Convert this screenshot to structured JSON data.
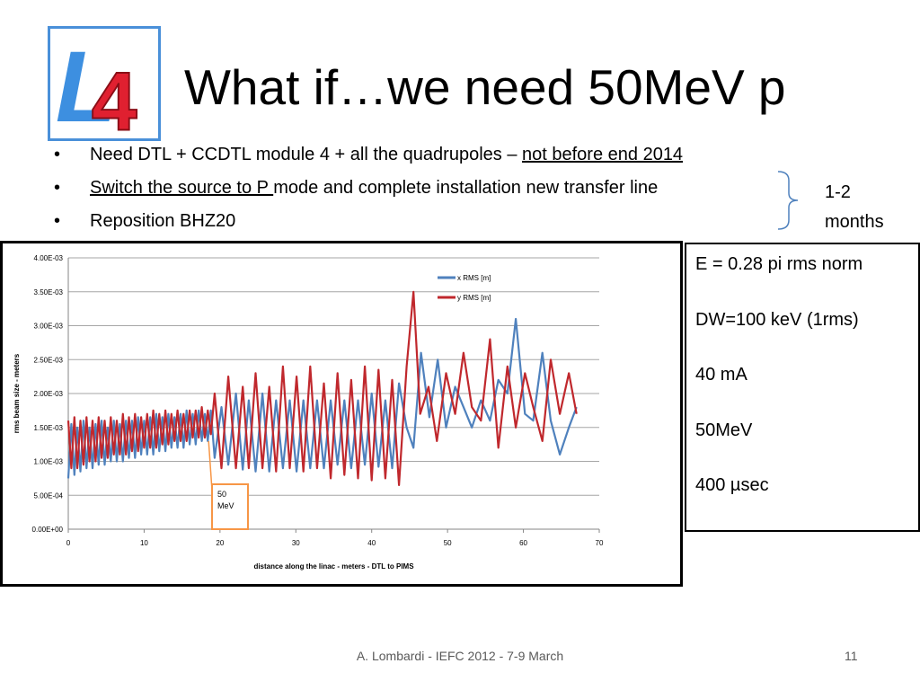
{
  "slide": {
    "title": "What if…we need 50MeV p",
    "logo": {
      "letter": "L",
      "number": "4"
    },
    "bullets": [
      {
        "underlined": "",
        "text": "Need DTL + CCDTL module 4 + all the quadrupoles – ",
        "underlined_after": "not before end 2014"
      },
      {
        "underlined": "Switch the source to P ",
        "text": "mode and complete installation  new transfer line",
        "underlined_after": ""
      },
      {
        "underlined": "",
        "text": "Reposition BHZ20",
        "underlined_after": ""
      }
    ],
    "bullet_glyph": "•",
    "brace_note_line1": "1-2",
    "brace_note_line2": "months",
    "params": [
      "E = 0.28 pi rms norm",
      "DW=100 keV (1rms)",
      "40 mA",
      "50MeV",
      "400 µsec"
    ],
    "footer": "A. Lombardi - IEFC 2012 - 7-9 March",
    "page_number": "11"
  },
  "colors": {
    "x_series": "#4f81bd",
    "y_series": "#c0282d",
    "callout": "#f79646",
    "logo_blue": "#4a90d9",
    "logo_red": "#d91e2e"
  },
  "chart_data": {
    "type": "line",
    "xlabel": "distance along  the linac  - meters - DTL to PIMS",
    "ylabel": "rms beam size  - meters",
    "xlim": [
      0,
      70
    ],
    "ylim": [
      0,
      0.004
    ],
    "x_ticks": [
      "0",
      "10",
      "20",
      "30",
      "40",
      "50",
      "60",
      "70"
    ],
    "y_ticks": [
      "0.00E+00",
      "5.00E-04",
      "1.00E-03",
      "1.50E-03",
      "2.00E-03",
      "2.50E-03",
      "3.00E-03",
      "3.50E-03",
      "4.00E-03"
    ],
    "legend_position": "top-right",
    "grid": true,
    "annotation": {
      "text_line1": "50",
      "text_line2": "MeV",
      "points_to_x": 18.5
    },
    "series": [
      {
        "name": "x RMS [m]",
        "x": [
          0,
          0.4,
          0.8,
          1.2,
          1.6,
          2.0,
          2.4,
          2.8,
          3.2,
          3.6,
          4.0,
          4.4,
          4.8,
          5.2,
          5.6,
          6.0,
          6.4,
          6.8,
          7.2,
          7.6,
          8.0,
          8.4,
          8.8,
          9.2,
          9.6,
          10.0,
          10.4,
          10.8,
          11.2,
          11.6,
          12.0,
          12.4,
          12.8,
          13.2,
          13.6,
          14.0,
          14.4,
          14.8,
          15.2,
          15.6,
          16.0,
          16.4,
          16.8,
          17.2,
          17.6,
          18.0,
          18.4,
          18.8,
          19.3,
          20.2,
          21.1,
          22.1,
          23.0,
          23.8,
          24.7,
          25.6,
          26.5,
          27.4,
          28.3,
          29.2,
          30.1,
          31.0,
          31.9,
          32.8,
          33.7,
          34.6,
          35.5,
          36.4,
          37.3,
          38.2,
          39.1,
          40.0,
          40.9,
          41.8,
          42.7,
          43.6,
          44.6,
          45.5,
          46.5,
          47.6,
          48.7,
          49.8,
          51.0,
          52.1,
          53.2,
          54.4,
          55.6,
          56.7,
          57.9,
          59.0,
          60.2,
          61.3,
          62.5,
          63.6,
          64.8,
          66.0,
          67.0
        ],
        "values": [
          0.00075,
          0.00155,
          0.0008,
          0.0015,
          0.00085,
          0.0016,
          0.0009,
          0.0015,
          0.0009,
          0.00155,
          0.00095,
          0.0016,
          0.00095,
          0.0015,
          0.001,
          0.0016,
          0.001,
          0.00155,
          0.001,
          0.0016,
          0.00105,
          0.0016,
          0.00105,
          0.00165,
          0.0011,
          0.0016,
          0.0011,
          0.00165,
          0.0011,
          0.0017,
          0.00115,
          0.00165,
          0.00115,
          0.0017,
          0.0012,
          0.00165,
          0.0012,
          0.0017,
          0.0012,
          0.00175,
          0.00125,
          0.0017,
          0.00125,
          0.00175,
          0.0013,
          0.0017,
          0.0013,
          0.00175,
          0.00105,
          0.0018,
          0.00095,
          0.002,
          0.00088,
          0.0019,
          0.00085,
          0.002,
          0.00085,
          0.0019,
          0.0009,
          0.0019,
          0.00085,
          0.0019,
          0.0009,
          0.0019,
          0.0009,
          0.0019,
          0.00095,
          0.0019,
          0.0009,
          0.0019,
          0.00095,
          0.002,
          0.00092,
          0.0019,
          0.0009,
          0.00215,
          0.0015,
          0.0012,
          0.0026,
          0.00165,
          0.0025,
          0.0015,
          0.0021,
          0.0018,
          0.0015,
          0.0019,
          0.0016,
          0.0022,
          0.002,
          0.0031,
          0.0017,
          0.0016,
          0.0026,
          0.0016,
          0.0011,
          0.0015,
          0.0018
        ]
      },
      {
        "name": "y RMS [m]",
        "x": [
          0,
          0.4,
          0.8,
          1.2,
          1.6,
          2.0,
          2.4,
          2.8,
          3.2,
          3.6,
          4.0,
          4.4,
          4.8,
          5.2,
          5.6,
          6.0,
          6.4,
          6.8,
          7.2,
          7.6,
          8.0,
          8.4,
          8.8,
          9.2,
          9.6,
          10.0,
          10.4,
          10.8,
          11.2,
          11.6,
          12.0,
          12.4,
          12.8,
          13.2,
          13.6,
          14.0,
          14.4,
          14.8,
          15.2,
          15.6,
          16.0,
          16.4,
          16.8,
          17.2,
          17.6,
          18.0,
          18.4,
          18.8,
          19.3,
          20.2,
          21.1,
          22.1,
          23.0,
          23.8,
          24.7,
          25.6,
          26.5,
          27.4,
          28.3,
          29.2,
          30.1,
          31.0,
          31.9,
          32.8,
          33.7,
          34.6,
          35.5,
          36.4,
          37.3,
          38.2,
          39.1,
          40.0,
          40.9,
          41.8,
          42.7,
          43.6,
          44.6,
          45.5,
          46.4,
          47.5,
          48.6,
          49.8,
          51.0,
          52.1,
          53.2,
          54.4,
          55.6,
          56.7,
          57.9,
          59.0,
          60.2,
          61.3,
          62.5,
          63.6,
          64.8,
          66.0,
          67.0
        ],
        "values": [
          0.0016,
          0.0009,
          0.00165,
          0.0009,
          0.0016,
          0.00095,
          0.00165,
          0.001,
          0.0016,
          0.001,
          0.00165,
          0.00105,
          0.0016,
          0.00105,
          0.00165,
          0.0011,
          0.0016,
          0.0011,
          0.0017,
          0.0011,
          0.00165,
          0.00115,
          0.0017,
          0.00115,
          0.00165,
          0.0012,
          0.0017,
          0.0012,
          0.00175,
          0.0012,
          0.0017,
          0.00125,
          0.00175,
          0.00125,
          0.0017,
          0.0013,
          0.00175,
          0.0013,
          0.0017,
          0.0013,
          0.00175,
          0.00135,
          0.00175,
          0.00135,
          0.0018,
          0.00135,
          0.00175,
          0.0014,
          0.002,
          0.0009,
          0.00225,
          0.0009,
          0.0021,
          0.0009,
          0.0023,
          0.0009,
          0.0021,
          0.00085,
          0.0024,
          0.0009,
          0.00225,
          0.00085,
          0.0024,
          0.0009,
          0.00215,
          0.00075,
          0.0023,
          0.0008,
          0.0022,
          0.00075,
          0.0024,
          0.00072,
          0.00235,
          0.00075,
          0.0022,
          0.00065,
          0.0024,
          0.0035,
          0.0017,
          0.0021,
          0.0013,
          0.0023,
          0.0017,
          0.0026,
          0.0018,
          0.0016,
          0.0028,
          0.0012,
          0.0024,
          0.0015,
          0.0023,
          0.0018,
          0.0013,
          0.0025,
          0.0017,
          0.0023,
          0.0017
        ]
      }
    ]
  }
}
